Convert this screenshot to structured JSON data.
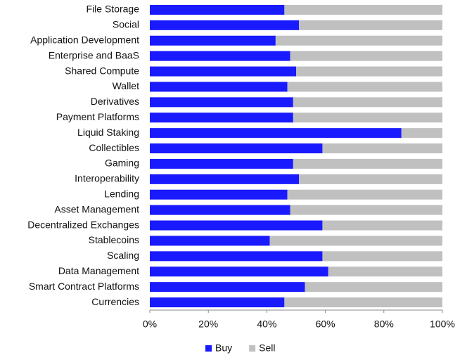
{
  "chart_data": {
    "type": "stacked_barh",
    "categories": [
      "File Storage",
      "Social",
      "Application Development",
      "Enterprise and BaaS",
      "Shared Compute",
      "Wallet",
      "Derivatives",
      "Payment Platforms",
      "Liquid Staking",
      "Collectibles",
      "Gaming",
      "Interoperability",
      "Lending",
      "Asset Management",
      "Decentralized Exchanges",
      "Stablecoins",
      "Scaling",
      "Data Management",
      "Smart Contract Platforms",
      "Currencies"
    ],
    "series": [
      {
        "name": "Buy",
        "color": "#1a1aff",
        "values": [
          46,
          51,
          43,
          48,
          50,
          47,
          49,
          49,
          86,
          59,
          49,
          51,
          47,
          48,
          59,
          41,
          59,
          61,
          53,
          46
        ]
      },
      {
        "name": "Sell",
        "color": "#c0c0c0",
        "values": [
          54,
          49,
          57,
          52,
          50,
          53,
          51,
          51,
          14,
          41,
          51,
          49,
          53,
          52,
          41,
          59,
          41,
          39,
          47,
          54
        ]
      }
    ],
    "xlim": [
      0,
      100
    ],
    "xticks": [
      {
        "value": 0,
        "label": "0%"
      },
      {
        "value": 20,
        "label": "20%"
      },
      {
        "value": 40,
        "label": "40%"
      },
      {
        "value": 60,
        "label": "60%"
      },
      {
        "value": 80,
        "label": "80%"
      },
      {
        "value": 100,
        "label": "100%"
      }
    ],
    "legend": "bottom"
  }
}
